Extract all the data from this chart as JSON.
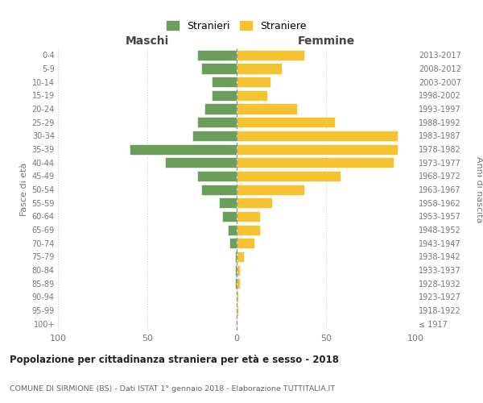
{
  "age_groups": [
    "100+",
    "95-99",
    "90-94",
    "85-89",
    "80-84",
    "75-79",
    "70-74",
    "65-69",
    "60-64",
    "55-59",
    "50-54",
    "45-49",
    "40-44",
    "35-39",
    "30-34",
    "25-29",
    "20-24",
    "15-19",
    "10-14",
    "5-9",
    "0-4"
  ],
  "birth_years": [
    "≤ 1917",
    "1918-1922",
    "1923-1927",
    "1928-1932",
    "1933-1937",
    "1938-1942",
    "1943-1947",
    "1948-1952",
    "1953-1957",
    "1958-1962",
    "1963-1967",
    "1968-1972",
    "1973-1977",
    "1978-1982",
    "1983-1987",
    "1988-1992",
    "1993-1997",
    "1998-2002",
    "2003-2007",
    "2008-2012",
    "2013-2017"
  ],
  "maschi": [
    0,
    0,
    0,
    1,
    1,
    1,
    4,
    5,
    8,
    10,
    20,
    22,
    40,
    60,
    25,
    22,
    18,
    14,
    14,
    20,
    22
  ],
  "femmine": [
    0,
    1,
    1,
    2,
    2,
    4,
    10,
    13,
    13,
    20,
    38,
    58,
    88,
    90,
    90,
    55,
    34,
    17,
    19,
    25,
    38
  ],
  "color_maschi": "#6a9e5a",
  "color_femmine": "#f5c231",
  "title_main": "Popolazione per cittadinanza straniera per età e sesso - 2018",
  "title_sub": "COMUNE DI SIRMIONE (BS) - Dati ISTAT 1° gennaio 2018 - Elaborazione TUTTITALIA.IT",
  "label_maschi": "Maschi",
  "label_femmine": "Femmine",
  "legend_stranieri": "Stranieri",
  "legend_straniere": "Straniere",
  "ylabel_left": "Fasce di età",
  "ylabel_right": "Anni di nascita",
  "xlim": 100,
  "background_color": "#ffffff",
  "grid_color": "#d0d0d0"
}
